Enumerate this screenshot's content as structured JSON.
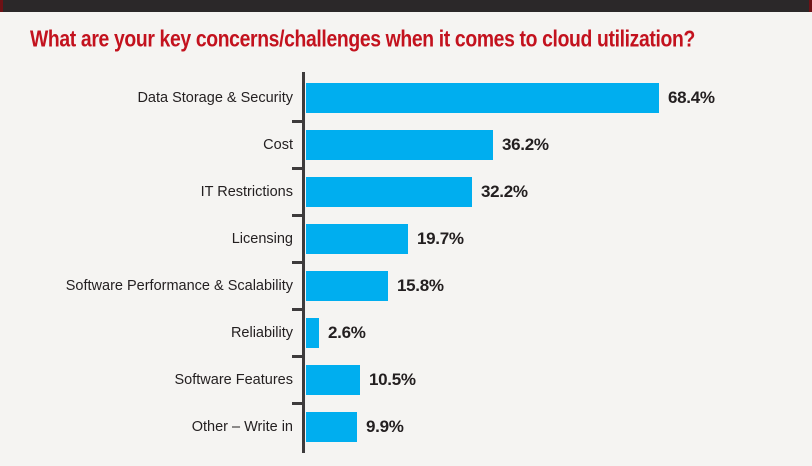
{
  "page": {
    "background": "#f5f4f2",
    "top_bar_color": "#2b2829",
    "top_bar_edge_color": "#6e1115"
  },
  "header": {
    "title": "What are your key concerns/challenges when it comes to cloud utilization?",
    "title_color": "#c3121e"
  },
  "chart_data": {
    "type": "bar",
    "orientation": "horizontal",
    "title": "What are your key concerns/challenges when it comes to cloud utilization?",
    "categories": [
      "Data Storage & Security",
      "Cost",
      "IT Restrictions",
      "Licensing",
      "Software Performance & Scalability",
      "Reliability",
      "Software Features",
      "Other – Write in"
    ],
    "values": [
      68.4,
      36.2,
      32.2,
      19.7,
      15.8,
      2.6,
      10.5,
      9.9
    ],
    "value_labels": [
      "68.4%",
      "36.2%",
      "32.2%",
      "19.7%",
      "15.8%",
      "2.6%",
      "10.5%",
      "9.9%"
    ],
    "xlabel": "",
    "ylabel": "",
    "xlim": [
      0,
      75
    ],
    "grid": false,
    "legend": false,
    "bar_color": "#00aeef",
    "axis_color": "#3d3b3c",
    "label_color": "#231f20",
    "value_color": "#231f20"
  }
}
